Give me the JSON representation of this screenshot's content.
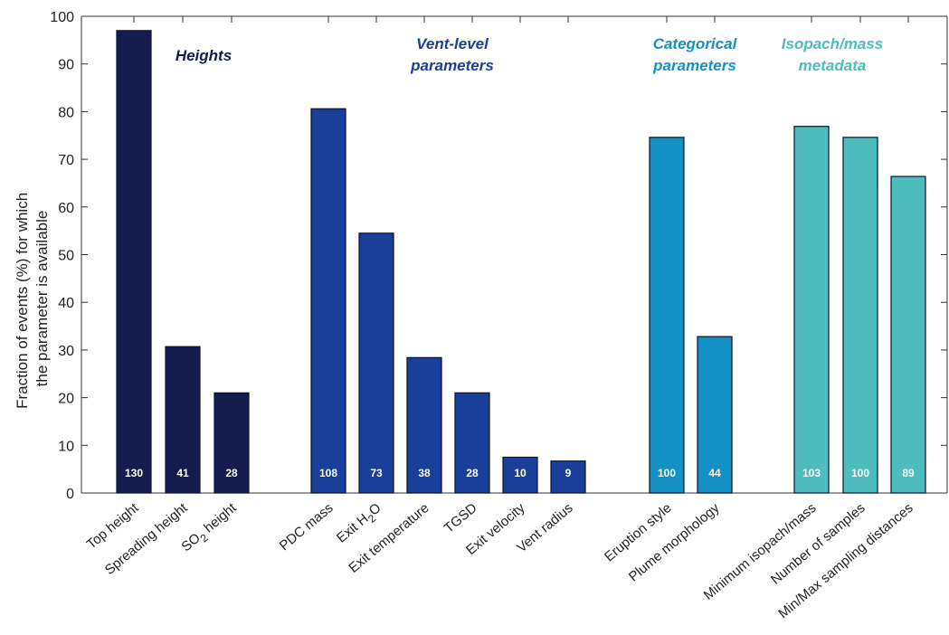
{
  "chart_data": {
    "type": "bar",
    "ylabel_line1": "Fraction of events (%) for which",
    "ylabel_line2": "the parameter is available",
    "ylim": [
      0,
      100
    ],
    "yticks": [
      0,
      10,
      20,
      30,
      40,
      50,
      60,
      70,
      80,
      90,
      100
    ],
    "grid": false,
    "groups": [
      {
        "title_lines": [
          "Heights"
        ],
        "color": "#131c4d",
        "title_color": "#131c4d",
        "bars": [
          {
            "label": "Top height",
            "value": 97,
            "count": "130"
          },
          {
            "label": "Spreading height",
            "value": 30.7,
            "count": "41"
          },
          {
            "label": "SO2 height",
            "label_main": "SO",
            "label_sub": "2",
            "label_rest": " height",
            "value": 21,
            "count": "28"
          }
        ]
      },
      {
        "title_lines": [
          "Vent-level",
          "parameters"
        ],
        "color": "#1a3f9b",
        "title_color": "#1a3f9b",
        "bars": [
          {
            "label": "PDC mass",
            "value": 80.6,
            "count": "108"
          },
          {
            "label": "Exit H2O",
            "label_main": "Exit H",
            "label_sub": "2",
            "label_rest": "O",
            "value": 54.5,
            "count": "73"
          },
          {
            "label": "Exit temperature",
            "value": 28.4,
            "count": "38"
          },
          {
            "label": "TGSD",
            "value": 21,
            "count": "28"
          },
          {
            "label": "Exit velocity",
            "value": 7.5,
            "count": "10"
          },
          {
            "label": "Vent radius",
            "value": 6.7,
            "count": "9"
          }
        ]
      },
      {
        "title_lines": [
          "Categorical",
          "parameters"
        ],
        "color": "#1590c4",
        "title_color": "#1590c4",
        "bars": [
          {
            "label": "Eruption style",
            "value": 74.6,
            "count": "100"
          },
          {
            "label": "Plume morphology",
            "value": 32.8,
            "count": "44"
          }
        ]
      },
      {
        "title_lines": [
          "Isopach/mass",
          "metadata"
        ],
        "color": "#4dbcbc",
        "title_color": "#4dbcbc",
        "bars": [
          {
            "label": "Minimum isopach/mass",
            "value": 76.9,
            "count": "103"
          },
          {
            "label": "Number of samples",
            "value": 74.6,
            "count": "100"
          },
          {
            "label": "Min/Max sampling distances",
            "value": 66.4,
            "count": "89"
          }
        ]
      }
    ]
  }
}
